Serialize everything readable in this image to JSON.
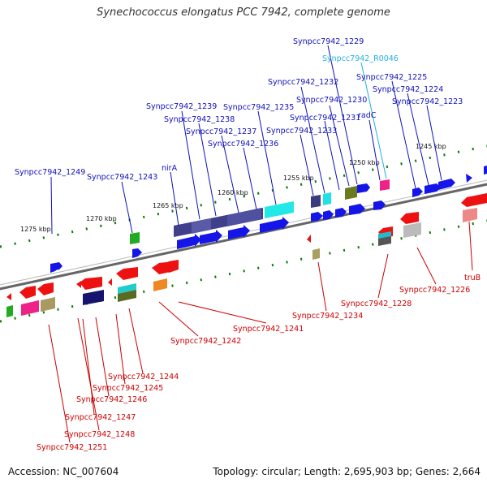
{
  "title": "Synechococcus elongatus PCC 7942, complete genome",
  "footer": {
    "accession": "Accession: NC_007604",
    "summary": "Topology: circular; Length: 2,695,903 bp; Genes: 2,664"
  },
  "colors": {
    "forward_label": "#1010bb",
    "reverse_label": "#cc0000",
    "rna_label": "#20b0e0",
    "forward_gene": "#1a1aee",
    "reverse_gene": "#ee1111",
    "backbone": "#777777"
  },
  "scale_labels": [
    "1245 kbp",
    "1250 kbp",
    "1255 kbp",
    "1260 kbp",
    "1265 kbp",
    "1270 kbp",
    "1275 kbp"
  ],
  "top_labels": [
    "Synpcc7942_1229",
    "Synpcc7942_R0046",
    "Synpcc7942_1225",
    "Synpcc7942_1232",
    "Synpcc7942_1224",
    "Synpcc7942_1230",
    "Synpcc7942_1223",
    "Synpcc7942_1239",
    "Synpcc7942_1235",
    "Synpcc7942_1231",
    "radC",
    "Synpcc7942_1238",
    "Synpcc7942_1237",
    "Synpcc7942_1233",
    "Synpcc7942_1236",
    "nirA",
    "Synpcc7942_1249",
    "Synpcc7942_1243"
  ],
  "bottom_labels": [
    "truB",
    "Synpcc7942_1226",
    "Synpcc7942_1228",
    "Synpcc7942_1234",
    "Synpcc7942_1241",
    "Synpcc7942_1242",
    "Synpcc7942_1244",
    "Synpcc7942_1245",
    "Synpcc7942_1246",
    "Synpcc7942_1247",
    "Synpcc7942_1248",
    "Synpcc7942_1251"
  ]
}
